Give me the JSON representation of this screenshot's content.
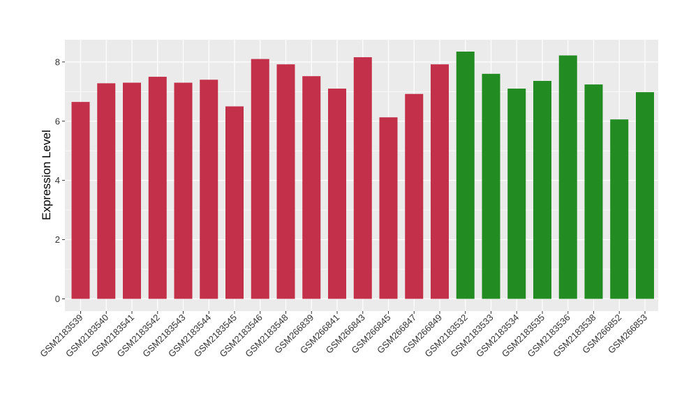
{
  "chart_data": {
    "type": "bar",
    "title": "",
    "xlabel": "",
    "ylabel": "Expression Level",
    "ylim": [
      0,
      8.75
    ],
    "yticks": [
      0,
      2,
      4,
      6,
      8
    ],
    "grid": true,
    "legend": "none",
    "colors": {
      "group1": "#C3304A",
      "group2": "#228B22",
      "panel": "#EBEBEB",
      "grid": "#FFFFFF"
    },
    "categories": [
      "GSM2183539",
      "GSM2183540",
      "GSM2183541",
      "GSM2183542",
      "GSM2183543",
      "GSM2183544",
      "GSM2183545",
      "GSM2183546",
      "GSM2183548",
      "GSM266839",
      "GSM266841",
      "GSM266843",
      "GSM266845",
      "GSM266847",
      "GSM266849",
      "GSM2183532",
      "GSM2183533",
      "GSM2183534",
      "GSM2183535",
      "GSM2183536",
      "GSM2183538",
      "GSM266852",
      "GSM266853"
    ],
    "values": [
      6.65,
      7.28,
      7.3,
      7.5,
      7.3,
      7.4,
      6.5,
      8.1,
      7.92,
      7.52,
      7.1,
      8.16,
      6.13,
      6.92,
      7.92,
      8.35,
      7.6,
      7.1,
      7.36,
      8.22,
      7.24,
      6.06,
      6.98
    ],
    "groups": [
      "group1",
      "group1",
      "group1",
      "group1",
      "group1",
      "group1",
      "group1",
      "group1",
      "group1",
      "group1",
      "group1",
      "group1",
      "group1",
      "group1",
      "group1",
      "group2",
      "group2",
      "group2",
      "group2",
      "group2",
      "group2",
      "group2",
      "group2"
    ]
  }
}
